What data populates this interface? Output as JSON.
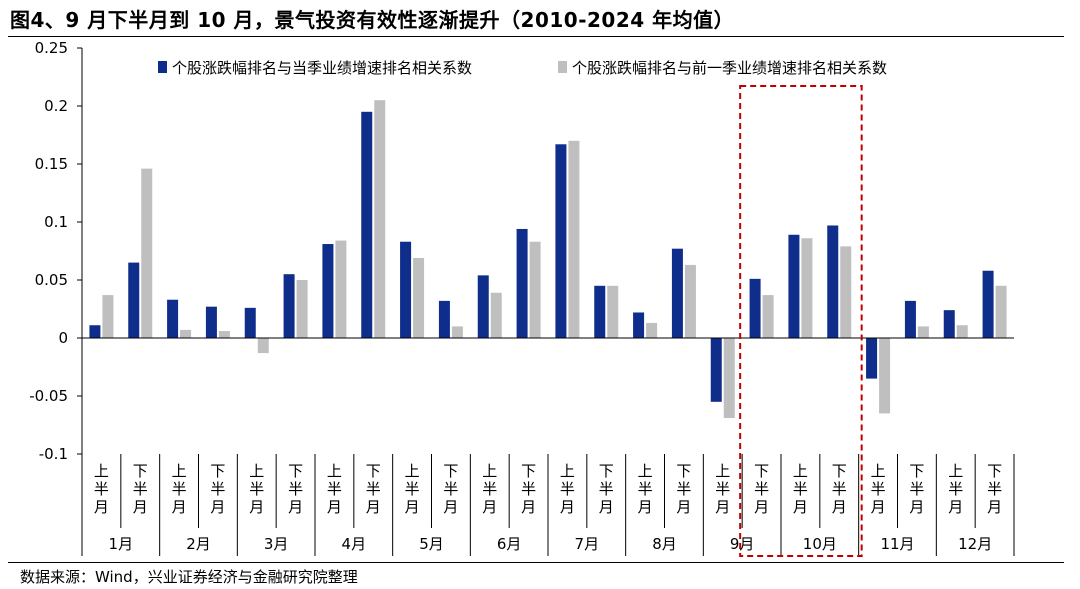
{
  "header": {
    "title": "图4、9 月下半月到 10 月，景气投资有效性逐渐提升（2010-2024 年均值）"
  },
  "footer": {
    "source": "数据来源：Wind，兴业证券经济与金融研究院整理"
  },
  "colors": {
    "series1": "#0f2d8a",
    "series2": "#bfbfbf",
    "highlight_box": "#c00000"
  },
  "chart_data": {
    "type": "bar",
    "ylim": [
      -0.1,
      0.25
    ],
    "yticks": [
      -0.1,
      -0.05,
      0,
      0.05,
      0.1,
      0.15,
      0.2,
      0.25
    ],
    "ytick_labels": [
      "-0.1",
      "-0.05",
      "0",
      "0.05",
      "0.1",
      "0.15",
      "0.2",
      "0.25"
    ],
    "legend_position": "top",
    "grid": false,
    "categories": [
      "1月上半月",
      "1月下半月",
      "2月上半月",
      "2月下半月",
      "3月上半月",
      "3月下半月",
      "4月上半月",
      "4月下半月",
      "5月上半月",
      "5月下半月",
      "6月上半月",
      "6月下半月",
      "7月上半月",
      "7月下半月",
      "8月上半月",
      "8月下半月",
      "9月上半月",
      "9月下半月",
      "10月上半月",
      "10月下半月",
      "11月上半月",
      "11月下半月",
      "12月上半月",
      "12月下半月"
    ],
    "sub_labels": [
      "上半月",
      "下半月"
    ],
    "months": [
      "1月",
      "2月",
      "3月",
      "4月",
      "5月",
      "6月",
      "7月",
      "8月",
      "9月",
      "10月",
      "11月",
      "12月"
    ],
    "series": [
      {
        "name": "个股涨跌幅排名与当季业绩增速排名相关系数",
        "values": [
          0.011,
          0.065,
          0.033,
          0.027,
          0.026,
          0.055,
          0.081,
          0.195,
          0.083,
          0.032,
          0.054,
          0.094,
          0.167,
          0.045,
          0.022,
          0.077,
          -0.055,
          0.051,
          0.089,
          0.097,
          -0.035,
          0.032,
          0.024,
          0.058
        ]
      },
      {
        "name": "个股涨跌幅排名与前一季业绩增速排名相关系数",
        "values": [
          0.037,
          0.146,
          0.007,
          0.006,
          -0.013,
          0.05,
          0.084,
          0.205,
          0.069,
          0.01,
          0.039,
          0.083,
          0.17,
          0.045,
          0.013,
          0.063,
          -0.069,
          0.037,
          0.086,
          0.079,
          -0.065,
          0.01,
          0.011,
          0.045
        ]
      }
    ],
    "highlight": {
      "from": "9月下半月",
      "to": "10月下半月"
    }
  }
}
